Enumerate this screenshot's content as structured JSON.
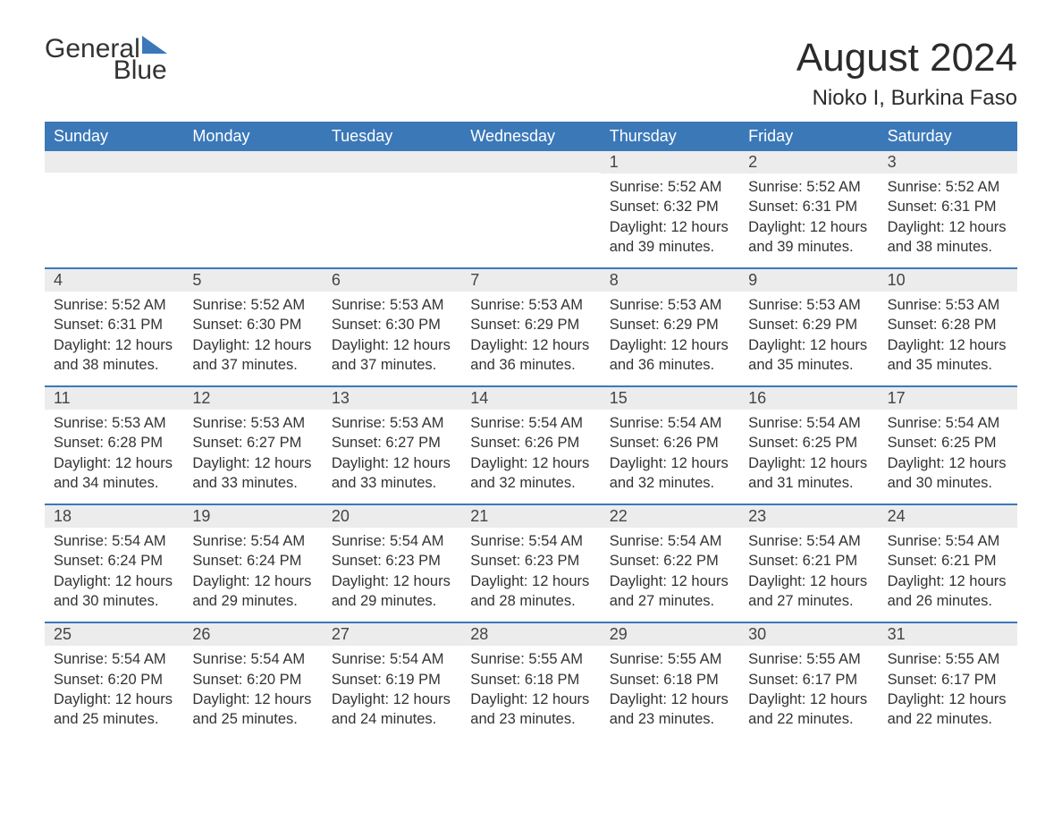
{
  "logo": {
    "word1": "General",
    "word2": "Blue",
    "icon_color": "#3b78b8",
    "text_color": "#333333"
  },
  "header": {
    "month_title": "August 2024",
    "location": "Nioko I, Burkina Faso"
  },
  "colors": {
    "header_bg": "#3b78b8",
    "header_text": "#ffffff",
    "daynum_bg": "#ececec",
    "border": "#3b78b8",
    "body_text": "#333333",
    "background": "#ffffff"
  },
  "typography": {
    "month_title_fontsize": 44,
    "location_fontsize": 24,
    "weekday_fontsize": 18,
    "daynum_fontsize": 18,
    "detail_fontsize": 16.5
  },
  "calendar": {
    "weekdays": [
      "Sunday",
      "Monday",
      "Tuesday",
      "Wednesday",
      "Thursday",
      "Friday",
      "Saturday"
    ],
    "weeks": [
      [
        {
          "empty": true
        },
        {
          "empty": true
        },
        {
          "empty": true
        },
        {
          "empty": true
        },
        {
          "day": "1",
          "sunrise": "Sunrise: 5:52 AM",
          "sunset": "Sunset: 6:32 PM",
          "daylight": "Daylight: 12 hours and 39 minutes."
        },
        {
          "day": "2",
          "sunrise": "Sunrise: 5:52 AM",
          "sunset": "Sunset: 6:31 PM",
          "daylight": "Daylight: 12 hours and 39 minutes."
        },
        {
          "day": "3",
          "sunrise": "Sunrise: 5:52 AM",
          "sunset": "Sunset: 6:31 PM",
          "daylight": "Daylight: 12 hours and 38 minutes."
        }
      ],
      [
        {
          "day": "4",
          "sunrise": "Sunrise: 5:52 AM",
          "sunset": "Sunset: 6:31 PM",
          "daylight": "Daylight: 12 hours and 38 minutes."
        },
        {
          "day": "5",
          "sunrise": "Sunrise: 5:52 AM",
          "sunset": "Sunset: 6:30 PM",
          "daylight": "Daylight: 12 hours and 37 minutes."
        },
        {
          "day": "6",
          "sunrise": "Sunrise: 5:53 AM",
          "sunset": "Sunset: 6:30 PM",
          "daylight": "Daylight: 12 hours and 37 minutes."
        },
        {
          "day": "7",
          "sunrise": "Sunrise: 5:53 AM",
          "sunset": "Sunset: 6:29 PM",
          "daylight": "Daylight: 12 hours and 36 minutes."
        },
        {
          "day": "8",
          "sunrise": "Sunrise: 5:53 AM",
          "sunset": "Sunset: 6:29 PM",
          "daylight": "Daylight: 12 hours and 36 minutes."
        },
        {
          "day": "9",
          "sunrise": "Sunrise: 5:53 AM",
          "sunset": "Sunset: 6:29 PM",
          "daylight": "Daylight: 12 hours and 35 minutes."
        },
        {
          "day": "10",
          "sunrise": "Sunrise: 5:53 AM",
          "sunset": "Sunset: 6:28 PM",
          "daylight": "Daylight: 12 hours and 35 minutes."
        }
      ],
      [
        {
          "day": "11",
          "sunrise": "Sunrise: 5:53 AM",
          "sunset": "Sunset: 6:28 PM",
          "daylight": "Daylight: 12 hours and 34 minutes."
        },
        {
          "day": "12",
          "sunrise": "Sunrise: 5:53 AM",
          "sunset": "Sunset: 6:27 PM",
          "daylight": "Daylight: 12 hours and 33 minutes."
        },
        {
          "day": "13",
          "sunrise": "Sunrise: 5:53 AM",
          "sunset": "Sunset: 6:27 PM",
          "daylight": "Daylight: 12 hours and 33 minutes."
        },
        {
          "day": "14",
          "sunrise": "Sunrise: 5:54 AM",
          "sunset": "Sunset: 6:26 PM",
          "daylight": "Daylight: 12 hours and 32 minutes."
        },
        {
          "day": "15",
          "sunrise": "Sunrise: 5:54 AM",
          "sunset": "Sunset: 6:26 PM",
          "daylight": "Daylight: 12 hours and 32 minutes."
        },
        {
          "day": "16",
          "sunrise": "Sunrise: 5:54 AM",
          "sunset": "Sunset: 6:25 PM",
          "daylight": "Daylight: 12 hours and 31 minutes."
        },
        {
          "day": "17",
          "sunrise": "Sunrise: 5:54 AM",
          "sunset": "Sunset: 6:25 PM",
          "daylight": "Daylight: 12 hours and 30 minutes."
        }
      ],
      [
        {
          "day": "18",
          "sunrise": "Sunrise: 5:54 AM",
          "sunset": "Sunset: 6:24 PM",
          "daylight": "Daylight: 12 hours and 30 minutes."
        },
        {
          "day": "19",
          "sunrise": "Sunrise: 5:54 AM",
          "sunset": "Sunset: 6:24 PM",
          "daylight": "Daylight: 12 hours and 29 minutes."
        },
        {
          "day": "20",
          "sunrise": "Sunrise: 5:54 AM",
          "sunset": "Sunset: 6:23 PM",
          "daylight": "Daylight: 12 hours and 29 minutes."
        },
        {
          "day": "21",
          "sunrise": "Sunrise: 5:54 AM",
          "sunset": "Sunset: 6:23 PM",
          "daylight": "Daylight: 12 hours and 28 minutes."
        },
        {
          "day": "22",
          "sunrise": "Sunrise: 5:54 AM",
          "sunset": "Sunset: 6:22 PM",
          "daylight": "Daylight: 12 hours and 27 minutes."
        },
        {
          "day": "23",
          "sunrise": "Sunrise: 5:54 AM",
          "sunset": "Sunset: 6:21 PM",
          "daylight": "Daylight: 12 hours and 27 minutes."
        },
        {
          "day": "24",
          "sunrise": "Sunrise: 5:54 AM",
          "sunset": "Sunset: 6:21 PM",
          "daylight": "Daylight: 12 hours and 26 minutes."
        }
      ],
      [
        {
          "day": "25",
          "sunrise": "Sunrise: 5:54 AM",
          "sunset": "Sunset: 6:20 PM",
          "daylight": "Daylight: 12 hours and 25 minutes."
        },
        {
          "day": "26",
          "sunrise": "Sunrise: 5:54 AM",
          "sunset": "Sunset: 6:20 PM",
          "daylight": "Daylight: 12 hours and 25 minutes."
        },
        {
          "day": "27",
          "sunrise": "Sunrise: 5:54 AM",
          "sunset": "Sunset: 6:19 PM",
          "daylight": "Daylight: 12 hours and 24 minutes."
        },
        {
          "day": "28",
          "sunrise": "Sunrise: 5:55 AM",
          "sunset": "Sunset: 6:18 PM",
          "daylight": "Daylight: 12 hours and 23 minutes."
        },
        {
          "day": "29",
          "sunrise": "Sunrise: 5:55 AM",
          "sunset": "Sunset: 6:18 PM",
          "daylight": "Daylight: 12 hours and 23 minutes."
        },
        {
          "day": "30",
          "sunrise": "Sunrise: 5:55 AM",
          "sunset": "Sunset: 6:17 PM",
          "daylight": "Daylight: 12 hours and 22 minutes."
        },
        {
          "day": "31",
          "sunrise": "Sunrise: 5:55 AM",
          "sunset": "Sunset: 6:17 PM",
          "daylight": "Daylight: 12 hours and 22 minutes."
        }
      ]
    ]
  }
}
